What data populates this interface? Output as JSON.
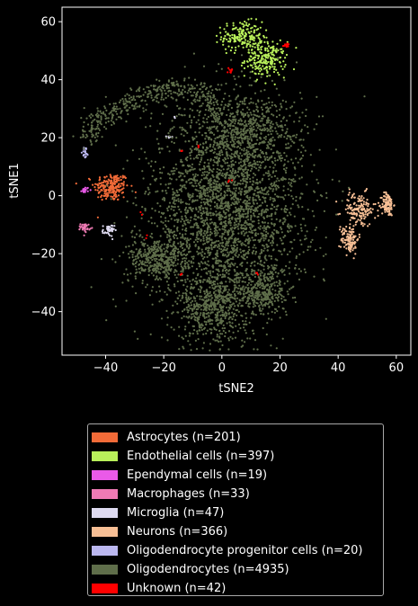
{
  "chart_data": {
    "type": "scatter",
    "xlabel": "tSNE2",
    "ylabel": "tSNE1",
    "xlim": [
      -55,
      65
    ],
    "ylim": [
      -55,
      65
    ],
    "xticks": [
      -40,
      -20,
      0,
      20,
      40,
      60
    ],
    "yticks": [
      -40,
      -20,
      0,
      20,
      40,
      60
    ],
    "grid": false,
    "legend_position": "below",
    "series": [
      {
        "name": "Astrocytes (n=201)",
        "count": 201,
        "color": "#f26b38",
        "clusters": [
          {
            "cx": -38,
            "cy": 3,
            "sx": 3,
            "sy": 2.5,
            "frac": 1.0
          }
        ]
      },
      {
        "name": "Endothelial cells (n=397)",
        "count": 397,
        "color": "#b9f05a",
        "clusters": [
          {
            "cx": 7,
            "cy": 55,
            "sx": 3.5,
            "sy": 2.5,
            "frac": 0.45
          },
          {
            "cx": 15,
            "cy": 47,
            "sx": 3.5,
            "sy": 3,
            "frac": 0.55
          }
        ]
      },
      {
        "name": "Ependymal cells (n=19)",
        "count": 19,
        "color": "#ea5ae8",
        "clusters": [
          {
            "cx": -47,
            "cy": 2,
            "sx": 0.6,
            "sy": 0.5,
            "frac": 1.0
          }
        ]
      },
      {
        "name": "Macrophages (n=33)",
        "count": 33,
        "color": "#ef7ab4",
        "clusters": [
          {
            "cx": -47,
            "cy": -11,
            "sx": 0.8,
            "sy": 0.7,
            "frac": 1.0
          }
        ]
      },
      {
        "name": "Microglia (n=47)",
        "count": 47,
        "color": "#dedaf0",
        "clusters": [
          {
            "cx": -39,
            "cy": -12,
            "sx": 1,
            "sy": 1,
            "frac": 0.85
          },
          {
            "cx": -18,
            "cy": 20,
            "sx": 0.5,
            "sy": 0.4,
            "frac": 0.1
          },
          {
            "cx": -16,
            "cy": 27,
            "sx": 0.3,
            "sy": 0.3,
            "frac": 0.05
          }
        ]
      },
      {
        "name": "Neurons (n=366)",
        "count": 366,
        "color": "#f7bf95",
        "clusters": [
          {
            "cx": 47,
            "cy": -5,
            "sx": 3,
            "sy": 3,
            "frac": 0.4
          },
          {
            "cx": 44,
            "cy": -15,
            "sx": 1.5,
            "sy": 2.5,
            "frac": 0.3
          },
          {
            "cx": 57,
            "cy": -3,
            "sx": 1,
            "sy": 2,
            "frac": 0.3
          }
        ]
      },
      {
        "name": "Oligodendrocyte progenitor cells (n=20)",
        "count": 20,
        "color": "#bbb7ef",
        "clusters": [
          {
            "cx": -47,
            "cy": 15,
            "sx": 0.5,
            "sy": 1,
            "frac": 1.0
          }
        ]
      },
      {
        "name": "Oligodendrocytes (n=4935)",
        "count": 4935,
        "color": "#5f6e4a",
        "clusters": [
          {
            "cx": 2,
            "cy": -5,
            "sx": 13,
            "sy": 18,
            "frac": 0.58
          },
          {
            "cx": -3,
            "cy": -38,
            "sx": 6,
            "sy": 6,
            "frac": 0.1
          },
          {
            "cx": -22,
            "cy": -22,
            "sx": 5,
            "sy": 4,
            "frac": 0.08
          },
          {
            "cx": 14,
            "cy": -33,
            "sx": 4,
            "sy": 4,
            "frac": 0.06
          },
          {
            "cx": 8,
            "cy": 23,
            "sx": 9,
            "sy": 6,
            "frac": 0.1
          }
        ],
        "arc": {
          "points": [
            [
              -47,
              20
            ],
            [
              -44,
              26
            ],
            [
              -36,
              30
            ],
            [
              -28,
              34
            ],
            [
              -18,
              37
            ],
            [
              -8,
              36
            ],
            [
              -2,
              31
            ]
          ],
          "width": 2.2,
          "frac": 0.08
        }
      },
      {
        "name": "Unknown (n=42)",
        "count": 42,
        "color": "#ff0000",
        "clusters": [
          {
            "cx": 22,
            "cy": 52,
            "sx": 0.6,
            "sy": 0.5,
            "frac": 0.3
          },
          {
            "cx": 3,
            "cy": 43,
            "sx": 0.7,
            "sy": 0.4,
            "frac": 0.25
          },
          {
            "cx": -14,
            "cy": 15,
            "sx": 0.3,
            "sy": 0.3,
            "frac": 0.07
          },
          {
            "cx": 3,
            "cy": 5,
            "sx": 0.3,
            "sy": 0.3,
            "frac": 0.07
          },
          {
            "cx": -26,
            "cy": -14,
            "sx": 0.3,
            "sy": 0.3,
            "frac": 0.05
          },
          {
            "cx": -14,
            "cy": -27,
            "sx": 0.3,
            "sy": 0.3,
            "frac": 0.07
          },
          {
            "cx": 12,
            "cy": -27,
            "sx": 0.3,
            "sy": 0.3,
            "frac": 0.07
          },
          {
            "cx": -28,
            "cy": -6,
            "sx": 0.3,
            "sy": 0.3,
            "frac": 0.05
          },
          {
            "cx": -8,
            "cy": 17,
            "sx": 0.3,
            "sy": 0.3,
            "frac": 0.07
          }
        ]
      }
    ]
  },
  "legend": {
    "items": [
      {
        "label": "Astrocytes (n=201)",
        "color": "#f26b38"
      },
      {
        "label": "Endothelial cells (n=397)",
        "color": "#b9f05a"
      },
      {
        "label": "Ependymal cells (n=19)",
        "color": "#ea5ae8"
      },
      {
        "label": "Macrophages (n=33)",
        "color": "#ef7ab4"
      },
      {
        "label": "Microglia (n=47)",
        "color": "#dedaf0"
      },
      {
        "label": "Neurons (n=366)",
        "color": "#f7bf95"
      },
      {
        "label": "Oligodendrocyte progenitor cells (n=20)",
        "color": "#bbb7ef"
      },
      {
        "label": "Oligodendrocytes (n=4935)",
        "color": "#5f6e4a"
      },
      {
        "label": "Unknown (n=42)",
        "color": "#ff0000"
      }
    ]
  }
}
